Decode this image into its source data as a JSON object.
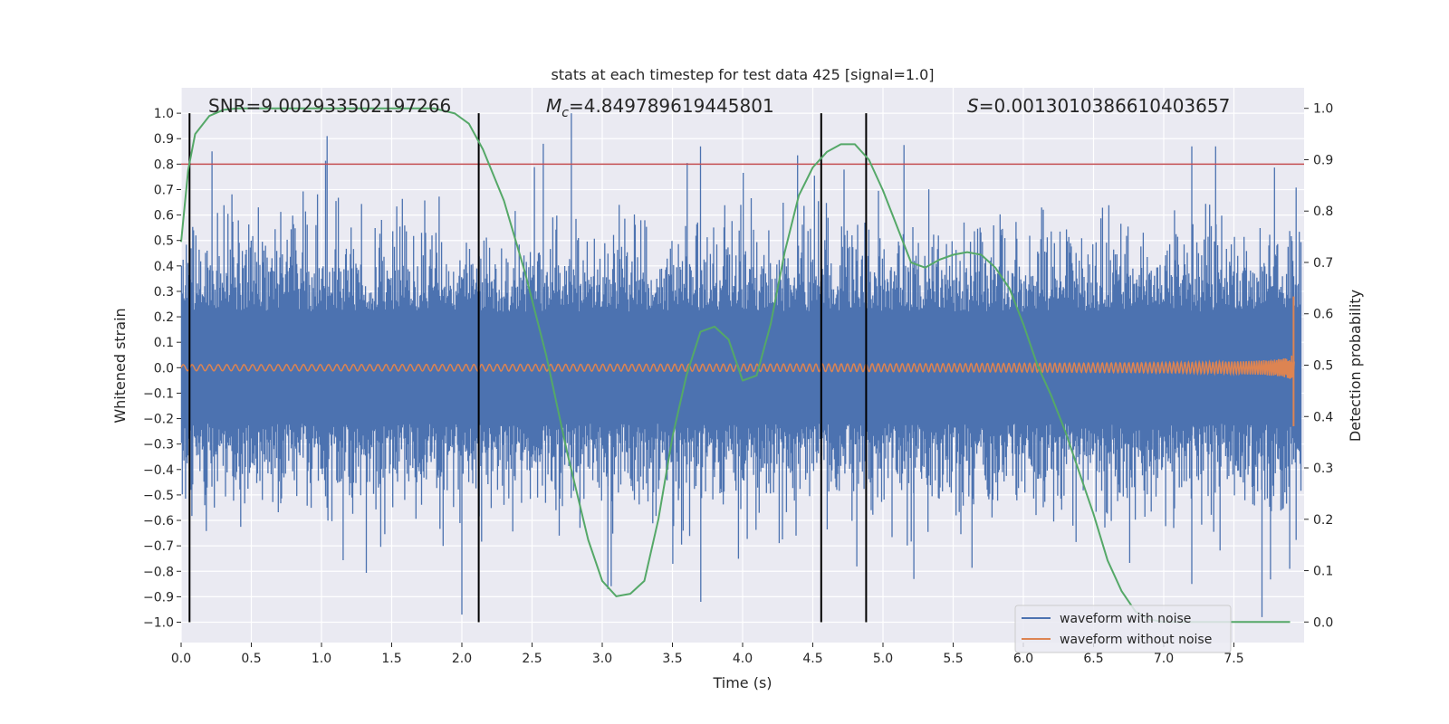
{
  "chart_data": {
    "type": "line",
    "title": "stats at each timestep for test data 425 [signal=1.0]",
    "xlabel": "Time (s)",
    "ylabel": "Whitened strain",
    "y2label": "Detection probability",
    "xlim": [
      0.0,
      8.0
    ],
    "ylim": [
      -1.08,
      1.1
    ],
    "y2lim": [
      -0.04,
      1.04
    ],
    "x_ticks": [
      "0.0",
      "0.5",
      "1.0",
      "1.5",
      "2.0",
      "2.5",
      "3.0",
      "3.5",
      "4.0",
      "4.5",
      "5.0",
      "5.5",
      "6.0",
      "6.5",
      "7.0",
      "7.5"
    ],
    "y_ticks": [
      "1.0",
      "0.9",
      "0.8",
      "0.7",
      "0.6",
      "0.5",
      "0.4",
      "0.3",
      "0.2",
      "0.1",
      "0.0",
      "−0.1",
      "−0.2",
      "−0.3",
      "−0.4",
      "−0.5",
      "−0.6",
      "−0.7",
      "−0.8",
      "−0.9",
      "−1.0"
    ],
    "y2_ticks": [
      "1.0",
      "0.9",
      "0.8",
      "0.7",
      "0.6",
      "0.5",
      "0.4",
      "0.3",
      "0.2",
      "0.1",
      "0.0"
    ],
    "annotations": {
      "snr": "SNR=9.002933502197266",
      "mc_symbol": "M",
      "mc_sub": "c",
      "mc_value": "=4.849789619445801",
      "s_symbol": "S",
      "s_value": "=0.0013010386610403657"
    },
    "threshold": {
      "value": 0.8,
      "axis": "left",
      "color": "#c44e52"
    },
    "vlines": [
      0.06,
      2.12,
      4.56,
      4.88
    ],
    "legend": {
      "location": "lower right",
      "entries": [
        {
          "label": "waveform with noise",
          "color": "#4c72b0"
        },
        {
          "label": "waveform without noise",
          "color": "#dd8452"
        }
      ]
    },
    "series": [
      {
        "name": "waveform with noise",
        "color": "#4c72b0",
        "envelope": "dense noise, max about 1.0 near t=2.8, min about -0.98 near t=7.7"
      },
      {
        "name": "waveform without noise",
        "color": "#dd8452",
        "t_end": 7.93,
        "peak": 0.28,
        "trough": -0.23
      },
      {
        "name": "Detection probability",
        "axis": "right",
        "color": "#55a868",
        "x": [
          0.0,
          0.05,
          0.1,
          0.2,
          0.3,
          0.4,
          0.6,
          0.8,
          1.0,
          1.4,
          1.8,
          1.95,
          2.05,
          2.15,
          2.3,
          2.45,
          2.6,
          2.75,
          2.9,
          3.0,
          3.1,
          3.2,
          3.3,
          3.4,
          3.5,
          3.6,
          3.7,
          3.8,
          3.9,
          4.0,
          4.1,
          4.2,
          4.3,
          4.4,
          4.5,
          4.6,
          4.7,
          4.8,
          4.9,
          5.0,
          5.1,
          5.2,
          5.3,
          5.4,
          5.5,
          5.6,
          5.7,
          5.8,
          5.9,
          6.0,
          6.1,
          6.2,
          6.3,
          6.4,
          6.5,
          6.6,
          6.7,
          6.8,
          6.9,
          7.0,
          7.3,
          7.6,
          7.9
        ],
        "y": [
          0.74,
          0.88,
          0.95,
          0.985,
          0.997,
          1.0,
          1.0,
          1.0,
          1.0,
          1.0,
          1.0,
          0.99,
          0.97,
          0.92,
          0.82,
          0.68,
          0.52,
          0.33,
          0.16,
          0.08,
          0.05,
          0.055,
          0.08,
          0.2,
          0.36,
          0.48,
          0.565,
          0.575,
          0.55,
          0.47,
          0.48,
          0.58,
          0.72,
          0.83,
          0.885,
          0.915,
          0.93,
          0.93,
          0.9,
          0.84,
          0.77,
          0.7,
          0.69,
          0.705,
          0.715,
          0.72,
          0.715,
          0.69,
          0.65,
          0.58,
          0.5,
          0.44,
          0.37,
          0.29,
          0.21,
          0.12,
          0.06,
          0.02,
          0.005,
          0.0,
          0.0,
          0.0,
          0.0
        ]
      }
    ]
  }
}
